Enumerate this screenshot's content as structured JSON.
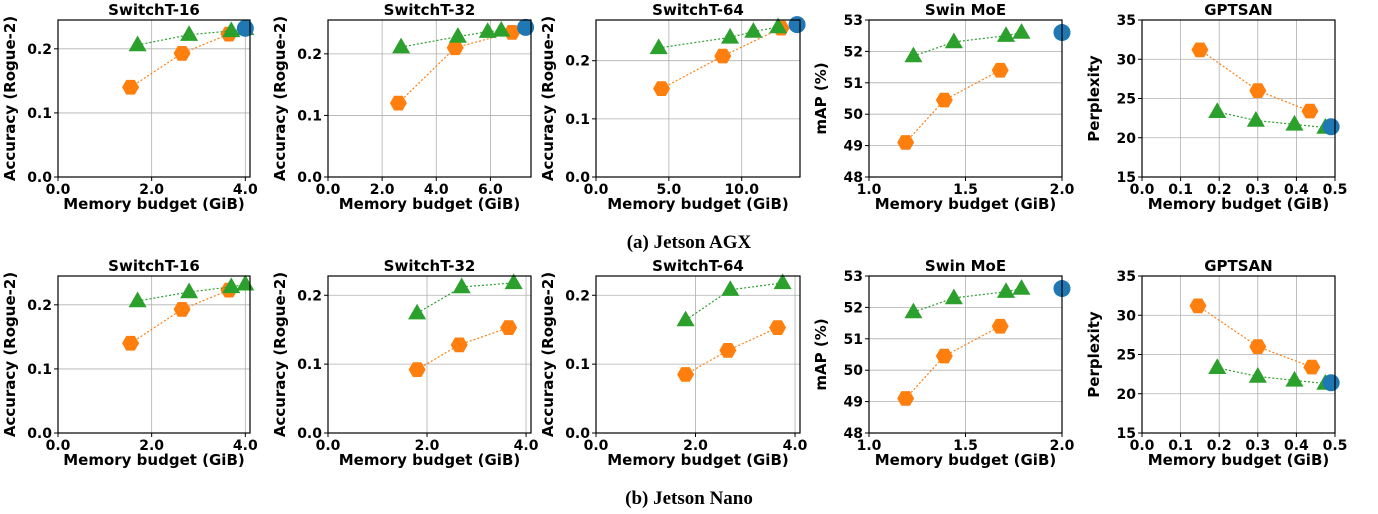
{
  "captions": [
    "(a) Jetson AGX",
    "(b) Jetson Nano"
  ],
  "colors": {
    "orange": "#ff7f0e",
    "green": "#2ca02c",
    "blue": "#1f77b4",
    "grid": "#b0b0b0"
  },
  "chart_data": [
    {
      "type": "line",
      "title": "SwitchT-16",
      "xlabel": "Memory budget (GiB)",
      "ylabel": "Accuracy (Rogue-2)",
      "xlim": [
        0,
        4.1
      ],
      "ylim": [
        0,
        0.245
      ],
      "xticks": [
        0,
        2,
        4
      ],
      "xticklabels": [
        "0.0",
        "2.0",
        "4.0"
      ],
      "yticks": [
        0,
        0.1,
        0.2
      ],
      "yticklabels": [
        "0.0",
        "0.1",
        "0.2"
      ],
      "grid": true,
      "series": [
        {
          "marker": "hexagon",
          "color": "orange",
          "x": [
            1.55,
            2.65,
            3.65
          ],
          "y": [
            0.14,
            0.193,
            0.223
          ]
        },
        {
          "marker": "triangle",
          "color": "green",
          "x": [
            1.7,
            2.8,
            3.7,
            4.0
          ],
          "y": [
            0.206,
            0.222,
            0.228,
            0.231
          ]
        },
        {
          "marker": "circle",
          "color": "blue",
          "x": [
            4.0
          ],
          "y": [
            0.232
          ]
        }
      ]
    },
    {
      "type": "line",
      "title": "SwitchT-32",
      "xlabel": "Memory budget (GiB)",
      "ylabel": "Accuracy (Rogue-2)",
      "xlim": [
        0,
        7.5
      ],
      "ylim": [
        0,
        0.255
      ],
      "xticks": [
        0,
        2,
        4,
        6
      ],
      "xticklabels": [
        "0.0",
        "2.0",
        "4.0",
        "6.0"
      ],
      "yticks": [
        0,
        0.1,
        0.2
      ],
      "yticklabels": [
        "0.0",
        "0.1",
        "0.2"
      ],
      "grid": true,
      "series": [
        {
          "marker": "hexagon",
          "color": "orange",
          "x": [
            2.6,
            4.7,
            6.8
          ],
          "y": [
            0.12,
            0.21,
            0.235
          ]
        },
        {
          "marker": "triangle",
          "color": "green",
          "x": [
            2.7,
            4.8,
            5.9,
            6.4
          ],
          "y": [
            0.211,
            0.228,
            0.236,
            0.238
          ]
        },
        {
          "marker": "circle",
          "color": "blue",
          "x": [
            7.3
          ],
          "y": [
            0.243
          ]
        }
      ]
    },
    {
      "type": "line",
      "title": "SwitchT-64",
      "xlabel": "Memory budget (GiB)",
      "ylabel": "Accuracy (Rogue-2)",
      "xlim": [
        0,
        14
      ],
      "ylim": [
        0,
        0.27
      ],
      "xticks": [
        0,
        5,
        10
      ],
      "xticklabels": [
        "0.0",
        "5.0",
        "10.0"
      ],
      "yticks": [
        0,
        0.1,
        0.2
      ],
      "yticklabels": [
        "0.0",
        "0.1",
        "0.2"
      ],
      "grid": true,
      "series": [
        {
          "marker": "hexagon",
          "color": "orange",
          "x": [
            4.5,
            8.7,
            12.7
          ],
          "y": [
            0.152,
            0.208,
            0.256
          ]
        },
        {
          "marker": "triangle",
          "color": "green",
          "x": [
            4.3,
            9.2,
            10.8,
            12.5
          ],
          "y": [
            0.222,
            0.24,
            0.25,
            0.258
          ]
        },
        {
          "marker": "circle",
          "color": "blue",
          "x": [
            13.8
          ],
          "y": [
            0.262
          ]
        }
      ]
    },
    {
      "type": "line",
      "title": "Swin MoE",
      "xlabel": "Memory budget (GiB)",
      "ylabel": "mAP (%)",
      "xlim": [
        1.0,
        2.0
      ],
      "ylim": [
        48,
        53
      ],
      "xticks": [
        1.0,
        1.5,
        2.0
      ],
      "xticklabels": [
        "1.0",
        "1.5",
        "2.0"
      ],
      "yticks": [
        48,
        49,
        50,
        51,
        52,
        53
      ],
      "yticklabels": [
        "48",
        "49",
        "50",
        "51",
        "52",
        "53"
      ],
      "grid": true,
      "series": [
        {
          "marker": "hexagon",
          "color": "orange",
          "x": [
            1.19,
            1.39,
            1.68
          ],
          "y": [
            49.1,
            50.45,
            51.4
          ]
        },
        {
          "marker": "triangle",
          "color": "green",
          "x": [
            1.23,
            1.44,
            1.71,
            1.79
          ],
          "y": [
            51.85,
            52.3,
            52.5,
            52.6
          ]
        },
        {
          "marker": "circle",
          "color": "blue",
          "x": [
            2.0
          ],
          "y": [
            52.6
          ]
        }
      ]
    },
    {
      "type": "line",
      "title": "GPTSAN",
      "xlabel": "Memory budget (GiB)",
      "ylabel": "Perplexity",
      "xlim": [
        0,
        0.5
      ],
      "ylim": [
        15,
        35
      ],
      "xticks": [
        0,
        0.1,
        0.2,
        0.3,
        0.4,
        0.5
      ],
      "xticklabels": [
        "0.0",
        "0.1",
        "0.2",
        "0.3",
        "0.4",
        "0.5"
      ],
      "yticks": [
        15,
        20,
        25,
        30,
        35
      ],
      "yticklabels": [
        "15",
        "20",
        "25",
        "30",
        "35"
      ],
      "grid": true,
      "series": [
        {
          "marker": "hexagon",
          "color": "orange",
          "x": [
            0.15,
            0.3,
            0.435
          ],
          "y": [
            31.2,
            26.0,
            23.4
          ]
        },
        {
          "marker": "triangle",
          "color": "green",
          "x": [
            0.195,
            0.295,
            0.395,
            0.475
          ],
          "y": [
            23.3,
            22.2,
            21.7,
            21.3
          ]
        },
        {
          "marker": "circle",
          "color": "blue",
          "x": [
            0.49
          ],
          "y": [
            21.4
          ]
        }
      ]
    },
    {
      "type": "line",
      "title": "SwitchT-16",
      "xlabel": "Memory budget (GiB)",
      "ylabel": "Accuracy (Rogue-2)",
      "xlim": [
        0,
        4.1
      ],
      "ylim": [
        0,
        0.245
      ],
      "xticks": [
        0,
        2,
        4
      ],
      "xticklabels": [
        "0.0",
        "2.0",
        "4.0"
      ],
      "yticks": [
        0,
        0.1,
        0.2
      ],
      "yticklabels": [
        "0.0",
        "0.1",
        "0.2"
      ],
      "grid": true,
      "series": [
        {
          "marker": "hexagon",
          "color": "orange",
          "x": [
            1.55,
            2.65,
            3.65
          ],
          "y": [
            0.14,
            0.193,
            0.223
          ]
        },
        {
          "marker": "triangle",
          "color": "green",
          "x": [
            1.7,
            2.8,
            3.7,
            4.0
          ],
          "y": [
            0.206,
            0.22,
            0.228,
            0.232
          ]
        }
      ]
    },
    {
      "type": "line",
      "title": "SwitchT-32",
      "xlabel": "Memory budget (GiB)",
      "ylabel": "Accuracy (Rogue-2)",
      "xlim": [
        0,
        4.1
      ],
      "ylim": [
        0,
        0.228
      ],
      "xticks": [
        0,
        2,
        4
      ],
      "xticklabels": [
        "0.0",
        "2.0",
        "4.0"
      ],
      "yticks": [
        0,
        0.1,
        0.2
      ],
      "yticklabels": [
        "0.0",
        "0.1",
        "0.2"
      ],
      "grid": true,
      "series": [
        {
          "marker": "hexagon",
          "color": "orange",
          "x": [
            1.8,
            2.65,
            3.65
          ],
          "y": [
            0.092,
            0.128,
            0.153
          ]
        },
        {
          "marker": "triangle",
          "color": "green",
          "x": [
            1.8,
            2.7,
            3.75
          ],
          "y": [
            0.174,
            0.212,
            0.218
          ]
        }
      ]
    },
    {
      "type": "line",
      "title": "SwitchT-64",
      "xlabel": "Memory budget (GiB)",
      "ylabel": "Accuracy (Rogue-2)",
      "xlim": [
        0,
        4.1
      ],
      "ylim": [
        0,
        0.228
      ],
      "xticks": [
        0,
        2,
        4
      ],
      "xticklabels": [
        "0.0",
        "2.0",
        "4.0"
      ],
      "yticks": [
        0,
        0.1,
        0.2
      ],
      "yticklabels": [
        "0.0",
        "0.1",
        "0.2"
      ],
      "grid": true,
      "series": [
        {
          "marker": "hexagon",
          "color": "orange",
          "x": [
            1.8,
            2.65,
            3.65
          ],
          "y": [
            0.085,
            0.12,
            0.153
          ]
        },
        {
          "marker": "triangle",
          "color": "green",
          "x": [
            1.8,
            2.7,
            3.75
          ],
          "y": [
            0.164,
            0.208,
            0.218
          ]
        }
      ]
    },
    {
      "type": "line",
      "title": "Swin MoE",
      "xlabel": "Memory budget (GiB)",
      "ylabel": "mAP (%)",
      "xlim": [
        1.0,
        2.0
      ],
      "ylim": [
        48,
        53
      ],
      "xticks": [
        1.0,
        1.5,
        2.0
      ],
      "xticklabels": [
        "1.0",
        "1.5",
        "2.0"
      ],
      "yticks": [
        48,
        49,
        50,
        51,
        52,
        53
      ],
      "yticklabels": [
        "48",
        "49",
        "50",
        "51",
        "52",
        "53"
      ],
      "grid": true,
      "series": [
        {
          "marker": "hexagon",
          "color": "orange",
          "x": [
            1.19,
            1.39,
            1.68
          ],
          "y": [
            49.1,
            50.45,
            51.4
          ]
        },
        {
          "marker": "triangle",
          "color": "green",
          "x": [
            1.23,
            1.44,
            1.71,
            1.79
          ],
          "y": [
            51.85,
            52.3,
            52.5,
            52.6
          ]
        },
        {
          "marker": "circle",
          "color": "blue",
          "x": [
            2.0
          ],
          "y": [
            52.6
          ]
        }
      ]
    },
    {
      "type": "line",
      "title": "GPTSAN",
      "xlabel": "Memory budget (GiB)",
      "ylabel": "Perplexity",
      "xlim": [
        0,
        0.5
      ],
      "ylim": [
        15,
        35
      ],
      "xticks": [
        0,
        0.1,
        0.2,
        0.3,
        0.4,
        0.5
      ],
      "xticklabels": [
        "0.0",
        "0.1",
        "0.2",
        "0.3",
        "0.4",
        "0.5"
      ],
      "yticks": [
        15,
        20,
        25,
        30,
        35
      ],
      "yticklabels": [
        "15",
        "20",
        "25",
        "30",
        "35"
      ],
      "grid": true,
      "series": [
        {
          "marker": "hexagon",
          "color": "orange",
          "x": [
            0.145,
            0.3,
            0.44
          ],
          "y": [
            31.2,
            26.0,
            23.4
          ]
        },
        {
          "marker": "triangle",
          "color": "green",
          "x": [
            0.195,
            0.3,
            0.395,
            0.475
          ],
          "y": [
            23.3,
            22.2,
            21.7,
            21.3
          ]
        },
        {
          "marker": "circle",
          "color": "blue",
          "x": [
            0.49
          ],
          "y": [
            21.4
          ]
        }
      ]
    }
  ]
}
